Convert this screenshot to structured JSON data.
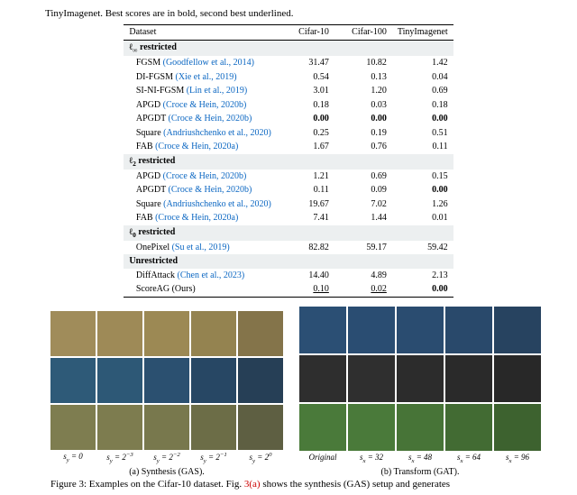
{
  "caption_top": "TinyImagenet. Best scores are in bold, second best underlined.",
  "colors": {
    "citation_link": "#0a66c2",
    "citation_red": "#c00",
    "group_bg": "#eceff0",
    "text": "#000000",
    "background": "#ffffff"
  },
  "table": {
    "header": {
      "dataset": "Dataset",
      "c10": "Cifar-10",
      "c100": "Cifar-100",
      "tin": "TinyImagenet"
    },
    "groups": [
      {
        "title_html": "ℓ<sub><span class=\"nrm\">∞</span></sub> restricted",
        "rows": [
          {
            "method": "FGSM",
            "cite": "(Goodfellow et al., 2014)",
            "c10": "31.47",
            "c100": "10.82",
            "tin": "1.42"
          },
          {
            "method": "DI-FGSM",
            "cite": "(Xie et al., 2019)",
            "c10": "0.54",
            "c100": "0.13",
            "tin": "0.04"
          },
          {
            "method": "SI-NI-FGSM",
            "cite": "(Lin et al., 2019)",
            "c10": "3.01",
            "c100": "1.20",
            "tin": "0.69"
          },
          {
            "method": "APGD",
            "cite": "(Croce & Hein, 2020b)",
            "c10": "0.18",
            "c100": "0.03",
            "tin": "0.18"
          },
          {
            "method": "APGDT",
            "cite": "(Croce & Hein, 2020b)",
            "c10": "0.00",
            "c10_style": "bold",
            "c100": "0.00",
            "c100_style": "bold",
            "tin": "0.00",
            "tin_style": "bold"
          },
          {
            "method": "Square",
            "cite": "(Andriushchenko et al., 2020)",
            "c10": "0.25",
            "c100": "0.19",
            "tin": "0.51"
          },
          {
            "method": "FAB",
            "cite": "(Croce & Hein, 2020a)",
            "c10": "1.67",
            "c100": "0.76",
            "tin": "0.11"
          }
        ]
      },
      {
        "title_html": "ℓ<sub><span class=\"nrm\">2</span></sub> restricted",
        "rows": [
          {
            "method": "APGD",
            "cite": "(Croce & Hein, 2020b)",
            "c10": "1.21",
            "c100": "0.69",
            "tin": "0.15"
          },
          {
            "method": "APGDT",
            "cite": "(Croce & Hein, 2020b)",
            "c10": "0.11",
            "c100": "0.09",
            "tin": "0.00",
            "tin_style": "bold"
          },
          {
            "method": "Square",
            "cite": "(Andriushchenko et al., 2020)",
            "c10": "19.67",
            "c100": "7.02",
            "tin": "1.26"
          },
          {
            "method": "FAB",
            "cite": "(Croce & Hein, 2020a)",
            "c10": "7.41",
            "c100": "1.44",
            "tin": "0.01"
          }
        ]
      },
      {
        "title_html": "ℓ<sub><span class=\"nrm\">0</span></sub> restricted",
        "rows": [
          {
            "method": "OnePixel",
            "cite": "(Su et al., 2019)",
            "c10": "82.82",
            "c100": "59.17",
            "tin": "59.42"
          }
        ]
      },
      {
        "title_html": "Unrestricted",
        "rows": [
          {
            "method": "DiffAttack",
            "cite": "(Chen et al., 2023)",
            "c10": "14.40",
            "c100": "4.89",
            "tin": "2.13"
          },
          {
            "method": "ScoreAG (Ours)",
            "cite": "",
            "c10": "0.10",
            "c10_style": "underline",
            "c100": "0.02",
            "c100_style": "underline",
            "tin": "0.00",
            "tin_style": "bold"
          }
        ]
      }
    ]
  },
  "figure": {
    "left": {
      "caption": "(a) Synthesis (GAS).",
      "xlabels_html": [
        "<i>s<sub>y</sub></i> = 0",
        "<i>s<sub>y</sub></i> = 2<sup>−3</sup>",
        "<i>s<sub>y</sub></i> = 2<sup>−2</sup>",
        "<i>s<sub>y</sub></i> = 2<sup>−1</sup>",
        "<i>s<sub>y</sub></i> = 2<sup>0</sup>"
      ],
      "tiles": [
        [
          "#a08c5a",
          "#9e8a57",
          "#9c8954",
          "#948350",
          "#84744a"
        ],
        [
          "#2e5a78",
          "#2d5876",
          "#2b5070",
          "#274764",
          "#263f56"
        ],
        [
          "#7e7d50",
          "#7d7c4f",
          "#78784d",
          "#6c6d47",
          "#5e5f42"
        ]
      ]
    },
    "right": {
      "caption": "(b) Transform (GAT).",
      "xlabels_html": [
        "Original",
        "<i>s<sub>x</sub></i> = 32",
        "<i>s<sub>x</sub></i> = 48",
        "<i>s<sub>x</sub></i> = 64",
        "<i>s<sub>x</sub></i> = 96"
      ],
      "tiles": [
        [
          "#2b4f74",
          "#2a4d72",
          "#2a4c70",
          "#29496b",
          "#274360"
        ],
        [
          "#2e2e2e",
          "#2f2f2f",
          "#2c2c2c",
          "#2a2a2a",
          "#282828"
        ],
        [
          "#4a7a3a",
          "#4a7a3a",
          "#477437",
          "#426b33",
          "#3d622f"
        ]
      ]
    },
    "caption_html": "Figure 3: Examples on the Cifar-10 dataset. Fig. <span class=\"cite-red\">3(a)</span> shows the synthesis (GAS) setup and generates"
  }
}
